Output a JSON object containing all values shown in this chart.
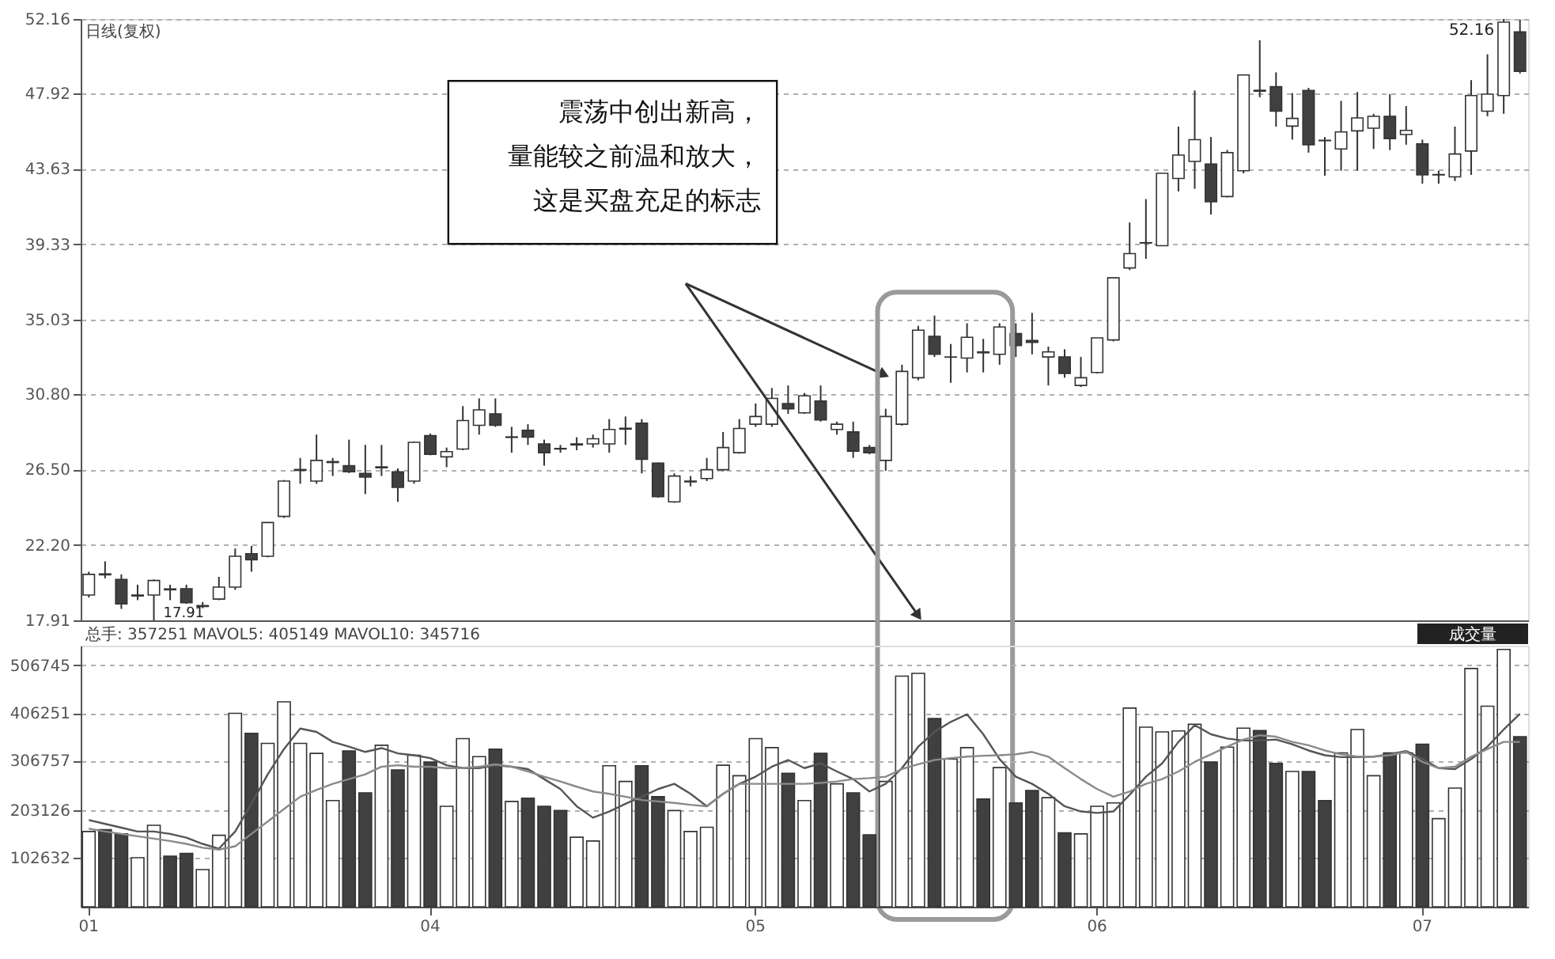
{
  "chart_data": [
    {
      "type": "candlestick",
      "tick_labels": "y",
      "grid": "y",
      "categories": [
        "01",
        null,
        null,
        null,
        null,
        null,
        null,
        null,
        null,
        null,
        null,
        null,
        null,
        null,
        null,
        null,
        null,
        null,
        null,
        null,
        null,
        "04",
        null,
        null,
        null,
        null,
        null,
        null,
        null,
        null,
        null,
        null,
        null,
        null,
        null,
        null,
        null,
        null,
        null,
        null,
        null,
        "05",
        null,
        null,
        null,
        null,
        null,
        null,
        null,
        null,
        null,
        null,
        null,
        null,
        null,
        null,
        null,
        null,
        null,
        null,
        null,
        null,
        "06",
        null,
        null,
        null,
        null,
        null,
        null,
        null,
        null,
        null,
        null,
        null,
        null,
        null,
        null,
        null,
        null,
        null,
        null,
        null,
        "07",
        null,
        null,
        null,
        null,
        null,
        null
      ],
      "ylim": [
        17.91,
        52.16
      ],
      "yticks": [
        17.91,
        {
          "value": 22.2,
          "label": "22.20"
        },
        {
          "value": 26.5,
          "label": "26.50"
        },
        {
          "value": 30.8,
          "label": "30.80"
        },
        35.03,
        39.33,
        43.63,
        47.92,
        52.16
      ],
      "annotations": [
        "日线(复权)",
        "52.16",
        "17.91",
        "震荡中创出新高，",
        "量能较之前温和放大，",
        "这是买盘充足的标志"
      ],
      "ohlc": [
        [
          19.35,
          20.68,
          19.21,
          20.53
        ],
        [
          20.55,
          21.27,
          20.3,
          20.5
        ],
        [
          20.24,
          20.53,
          18.56,
          18.85
        ],
        [
          19.3,
          19.94,
          19.06,
          19.35
        ],
        [
          19.35,
          20.24,
          17.91,
          20.18
        ],
        [
          19.7,
          19.94,
          19.06,
          19.65
        ],
        [
          19.71,
          19.94,
          18.85,
          18.91
        ],
        [
          18.7,
          18.95,
          18.6,
          18.75
        ],
        [
          19.12,
          20.39,
          19.06,
          19.8
        ],
        [
          19.8,
          22.0,
          19.65,
          21.56
        ],
        [
          21.71,
          22.15,
          20.68,
          21.36
        ],
        [
          21.56,
          23.5,
          21.5,
          23.48
        ],
        [
          23.83,
          25.9,
          23.75,
          25.84
        ],
        [
          26.45,
          27.16,
          25.69,
          26.5
        ],
        [
          25.84,
          28.49,
          25.69,
          27.02
        ],
        [
          26.9,
          27.16,
          26.13,
          26.95
        ],
        [
          26.72,
          28.2,
          26.3,
          26.37
        ],
        [
          26.28,
          27.9,
          25.1,
          26.07
        ],
        [
          26.6,
          27.9,
          26.13,
          26.65
        ],
        [
          26.37,
          26.57,
          24.66,
          25.48
        ],
        [
          25.84,
          28.1,
          25.69,
          28.05
        ],
        [
          28.43,
          28.55,
          27.31,
          27.37
        ],
        [
          27.22,
          27.75,
          26.63,
          27.52
        ],
        [
          27.67,
          30.11,
          27.6,
          29.29
        ],
        [
          29.02,
          30.55,
          28.49,
          29.9
        ],
        [
          29.67,
          30.55,
          28.93,
          29.02
        ],
        [
          28.33,
          28.93,
          27.46,
          28.36
        ],
        [
          28.73,
          29.08,
          27.9,
          28.34
        ],
        [
          27.96,
          28.2,
          26.72,
          27.46
        ],
        [
          27.7,
          27.9,
          27.46,
          27.67
        ],
        [
          27.9,
          28.34,
          27.6,
          27.96
        ],
        [
          27.96,
          28.49,
          27.75,
          28.25
        ],
        [
          27.96,
          29.37,
          27.46,
          28.78
        ],
        [
          28.8,
          29.52,
          27.9,
          28.85
        ],
        [
          29.14,
          29.37,
          26.28,
          27.08
        ],
        [
          26.87,
          26.9,
          24.9,
          24.95
        ],
        [
          24.66,
          26.28,
          24.6,
          26.13
        ],
        [
          25.8,
          26.13,
          25.54,
          25.84
        ],
        [
          25.99,
          27.16,
          25.84,
          26.49
        ],
        [
          26.49,
          28.64,
          26.4,
          27.75
        ],
        [
          27.46,
          29.37,
          27.4,
          28.84
        ],
        [
          29.08,
          30.26,
          28.93,
          29.52
        ],
        [
          29.08,
          31.14,
          28.93,
          30.55
        ],
        [
          30.26,
          31.29,
          29.67,
          29.96
        ],
        [
          29.73,
          30.85,
          29.67,
          30.7
        ],
        [
          30.4,
          31.29,
          29.23,
          29.32
        ],
        [
          28.78,
          29.23,
          28.49,
          29.08
        ],
        [
          28.64,
          29.23,
          27.16,
          27.55
        ],
        [
          27.75,
          27.9,
          27.37,
          27.46
        ],
        [
          27.02,
          29.96,
          26.43,
          29.52
        ],
        [
          29.08,
          32.47,
          29.0,
          32.09
        ],
        [
          31.73,
          34.68,
          31.58,
          34.44
        ],
        [
          34.09,
          35.27,
          32.91,
          33.06
        ],
        [
          32.9,
          33.65,
          31.44,
          32.91
        ],
        [
          32.85,
          34.83,
          32.03,
          34.03
        ],
        [
          33.2,
          33.94,
          32.03,
          33.15
        ],
        [
          33.06,
          34.83,
          32.47,
          34.62
        ],
        [
          34.24,
          34.83,
          32.91,
          33.56
        ],
        [
          33.85,
          35.42,
          33.06,
          33.74
        ],
        [
          32.91,
          33.5,
          31.29,
          33.2
        ],
        [
          32.91,
          33.35,
          31.73,
          31.97
        ],
        [
          31.29,
          32.91,
          31.2,
          31.73
        ],
        [
          32.03,
          34.0,
          31.97,
          34.0
        ],
        [
          33.88,
          37.42,
          33.8,
          37.42
        ],
        [
          37.98,
          40.57,
          37.86,
          38.8
        ],
        [
          39.4,
          41.9,
          38.5,
          39.42
        ],
        [
          39.25,
          43.37,
          39.25,
          43.37
        ],
        [
          43.08,
          46.03,
          42.34,
          44.41
        ],
        [
          44.05,
          48.09,
          42.49,
          45.29
        ],
        [
          43.9,
          45.44,
          41.02,
          41.75
        ],
        [
          42.05,
          44.7,
          42.0,
          44.55
        ],
        [
          43.52,
          49.0,
          43.37,
          48.97
        ],
        [
          48.1,
          50.95,
          47.7,
          48.05
        ],
        [
          48.3,
          49.12,
          46.03,
          46.91
        ],
        [
          46.06,
          47.94,
          45.29,
          46.5
        ],
        [
          48.09,
          48.24,
          44.55,
          45.0
        ],
        [
          45.25,
          45.44,
          43.23,
          45.23
        ],
        [
          44.76,
          47.5,
          43.52,
          45.73
        ],
        [
          45.79,
          48.0,
          43.52,
          46.53
        ],
        [
          45.94,
          46.76,
          44.76,
          46.62
        ],
        [
          46.62,
          47.88,
          44.7,
          45.35
        ],
        [
          45.58,
          47.2,
          45.0,
          45.82
        ],
        [
          45.05,
          45.29,
          42.78,
          43.28
        ],
        [
          43.28,
          43.52,
          42.78,
          43.3
        ],
        [
          43.17,
          46.03,
          42.93,
          44.47
        ],
        [
          44.64,
          48.68,
          43.28,
          47.8
        ],
        [
          46.91,
          50.15,
          46.62,
          47.88
        ],
        [
          47.8,
          52.16,
          46.76,
          51.98
        ],
        [
          51.42,
          52.12,
          49.06,
          49.18
        ]
      ]
    },
    {
      "type": "bar",
      "grid": "y",
      "categories": [
        "01",
        null,
        null,
        null,
        null,
        null,
        null,
        null,
        null,
        null,
        null,
        null,
        null,
        null,
        null,
        null,
        null,
        null,
        null,
        null,
        null,
        "04",
        null,
        null,
        null,
        null,
        null,
        null,
        null,
        null,
        null,
        null,
        null,
        null,
        null,
        null,
        null,
        null,
        null,
        null,
        null,
        "05",
        null,
        null,
        null,
        null,
        null,
        null,
        null,
        null,
        null,
        null,
        null,
        null,
        null,
        null,
        null,
        null,
        null,
        null,
        null,
        null,
        "06",
        null,
        null,
        null,
        null,
        null,
        null,
        null,
        null,
        null,
        null,
        null,
        null,
        null,
        null,
        null,
        null,
        null,
        null,
        null,
        "07",
        null,
        null,
        null,
        null,
        null,
        null
      ],
      "ylim": [
        0,
        548000
      ],
      "yticks": [
        102632,
        203126,
        306757,
        406251,
        506745
      ],
      "annotations": [
        "总手: 357251 MAVOL5: 405149 MAVOL10: 345716",
        "成交量"
      ],
      "series": [
        {
          "type": "bar",
          "values": [
            158000,
            162000,
            153000,
            103000,
            171000,
            106000,
            112000,
            78000,
            150000,
            406000,
            364000,
            343000,
            430000,
            343000,
            322000,
            223000,
            327000,
            239000,
            339000,
            287000,
            318000,
            304000,
            211000,
            353000,
            315000,
            331000,
            221000,
            228000,
            211000,
            202000,
            146000,
            138000,
            296000,
            263000,
            296000,
            231000,
            202000,
            158000,
            167000,
            297000,
            275000,
            353000,
            334000,
            280000,
            223000,
            322000,
            258000,
            239000,
            151000,
            263000,
            484000,
            490000,
            395000,
            310000,
            334000,
            226000,
            292000,
            218000,
            244000,
            229000,
            155000,
            153000,
            211000,
            218000,
            417000,
            377000,
            367000,
            369000,
            383000,
            304000,
            335000,
            375000,
            370000,
            301000,
            284000,
            284000,
            223000,
            323000,
            372000,
            275000,
            323000,
            323000,
            341000,
            185000,
            249000,
            500000,
            421000,
            540000,
            357000
          ],
          "colors": [
            "#ffffff",
            "#404040",
            "#404040",
            "#ffffff",
            "#ffffff",
            "#404040",
            "#404040",
            "#ffffff",
            "#ffffff",
            "#ffffff",
            "#404040",
            "#ffffff",
            "#ffffff",
            "#ffffff",
            "#ffffff",
            "#ffffff",
            "#404040",
            "#404040",
            "#ffffff",
            "#404040",
            "#ffffff",
            "#404040",
            "#ffffff",
            "#ffffff",
            "#ffffff",
            "#404040",
            "#ffffff",
            "#404040",
            "#404040",
            "#404040",
            "#ffffff",
            "#ffffff",
            "#ffffff",
            "#ffffff",
            "#404040",
            "#404040",
            "#ffffff",
            "#ffffff",
            "#ffffff",
            "#ffffff",
            "#ffffff",
            "#ffffff",
            "#ffffff",
            "#404040",
            "#ffffff",
            "#404040",
            "#ffffff",
            "#404040",
            "#404040",
            "#ffffff",
            "#ffffff",
            "#ffffff",
            "#404040",
            "#ffffff",
            "#ffffff",
            "#404040",
            "#ffffff",
            "#404040",
            "#404040",
            "#ffffff",
            "#404040",
            "#ffffff",
            "#ffffff",
            "#ffffff",
            "#ffffff",
            "#ffffff",
            "#ffffff",
            "#ffffff",
            "#ffffff",
            "#404040",
            "#ffffff",
            "#ffffff",
            "#404040",
            "#404040",
            "#ffffff",
            "#404040",
            "#404040",
            "#ffffff",
            "#ffffff",
            "#ffffff",
            "#404040",
            "#ffffff",
            "#404040",
            "#ffffff",
            "#ffffff",
            "#ffffff",
            "#ffffff",
            "#ffffff",
            "#404040"
          ]
        },
        {
          "type": "line",
          "color": "#555555",
          "values": [
            182000,
            174000,
            166000,
            158000,
            158000,
            153000,
            145000,
            132000,
            122000,
            158000,
            216000,
            278000,
            331000,
            374000,
            367000,
            346000,
            336000,
            325000,
            333000,
            322000,
            318000,
            312000,
            297000,
            291000,
            291000,
            297000,
            294000,
            289000,
            268000,
            247000,
            211000,
            187000,
            200000,
            216000,
            231000,
            247000,
            258000,
            237000,
            211000,
            237000,
            258000,
            273000,
            294000,
            308000,
            291000,
            301000,
            284000,
            268000,
            242000,
            258000,
            291000,
            336000,
            367000,
            388000,
            404000,
            362000,
            310000,
            273000,
            258000,
            237000,
            211000,
            200000,
            197000,
            200000,
            235000,
            273000,
            301000,
            346000,
            381000,
            362000,
            353000,
            349000,
            349000,
            351000,
            341000,
            328000,
            318000,
            314000,
            314000,
            315000,
            320000,
            327000,
            310000,
            291000,
            289000,
            310000,
            336000,
            372000,
            405000
          ]
        },
        {
          "type": "line",
          "color": "#8a8a8a",
          "values": [
            164000,
            158000,
            153000,
            148000,
            143000,
            138000,
            132000,
            124000,
            120000,
            127000,
            153000,
            179000,
            205000,
            231000,
            245000,
            258000,
            268000,
            278000,
            294000,
            297000,
            294000,
            294000,
            291000,
            291000,
            294000,
            299000,
            294000,
            284000,
            273000,
            263000,
            252000,
            242000,
            237000,
            231000,
            224000,
            221000,
            218000,
            214000,
            211000,
            237000,
            258000,
            258000,
            258000,
            258000,
            258000,
            260000,
            263000,
            268000,
            270000,
            273000,
            289000,
            299000,
            308000,
            312000,
            315000,
            317000,
            318000,
            320000,
            325000,
            315000,
            291000,
            268000,
            247000,
            231000,
            242000,
            258000,
            268000,
            284000,
            304000,
            320000,
            336000,
            351000,
            360000,
            357000,
            346000,
            339000,
            328000,
            320000,
            315000,
            315000,
            318000,
            325000,
            304000,
            291000,
            294000,
            315000,
            331000,
            346000,
            346000
          ]
        }
      ]
    }
  ]
}
